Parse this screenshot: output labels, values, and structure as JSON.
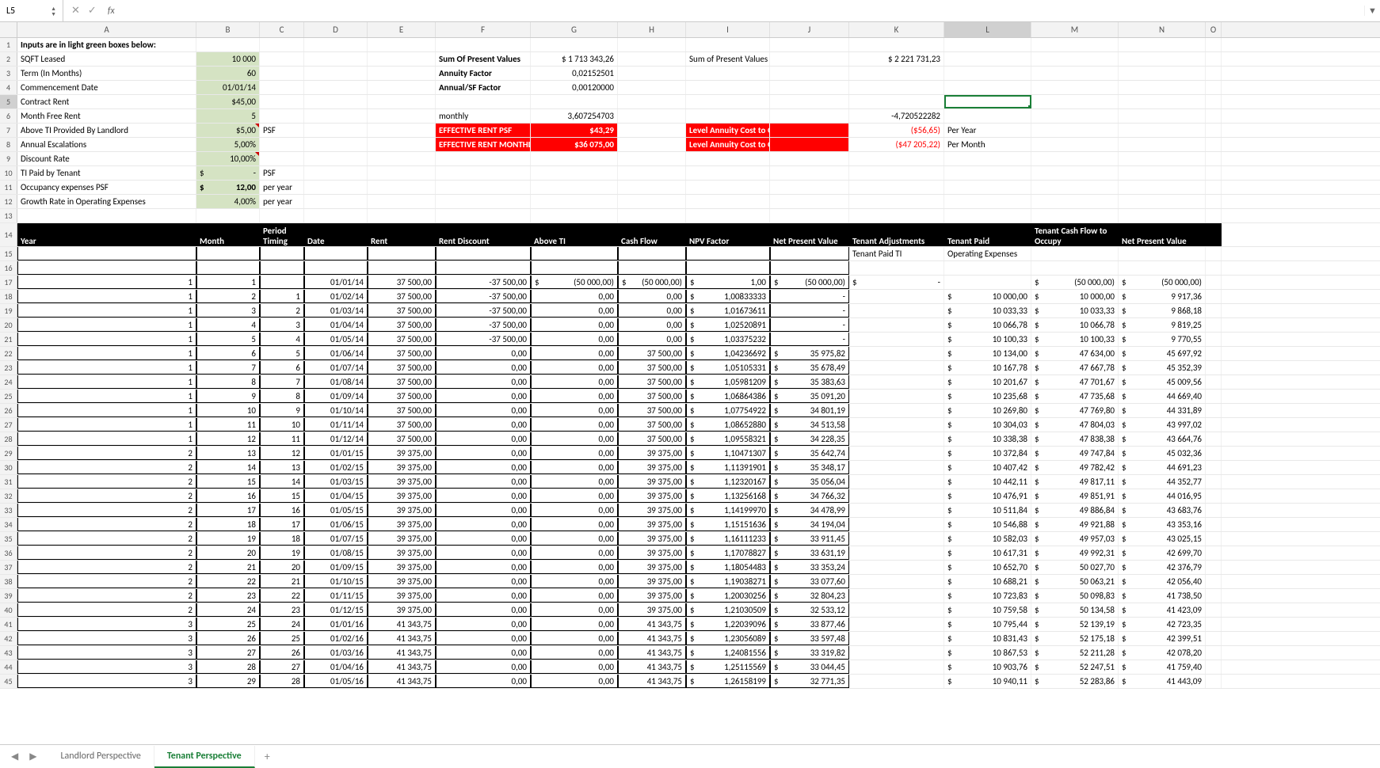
{
  "namebox": "L5",
  "fx": "",
  "cols": [
    "A",
    "B",
    "C",
    "D",
    "E",
    "F",
    "G",
    "H",
    "I",
    "J",
    "K",
    "L",
    "M",
    "N",
    "O"
  ],
  "widths": [
    "cw-A",
    "cw-B",
    "cw-C",
    "cw-D",
    "cw-E",
    "cw-F",
    "cw-G",
    "cw-H",
    "cw-I",
    "cw-J",
    "cw-K",
    "cw-L",
    "cw-M",
    "cw-N",
    "cw-O"
  ],
  "inputs": [
    {
      "r": 1,
      "a": "Inputs are in light green boxes below:",
      "aclass": "bold"
    },
    {
      "r": 2,
      "a": "SQFT Leased",
      "b": "10 000",
      "bclass": "lg r",
      "f": "Sum Of Present Values",
      "fclass": "bold",
      "g": "$   1 713 343,26",
      "gclass": "r",
      "i": "Sum of Present Values for Occupancy",
      "k": "$    2 221 731,23",
      "kclass": "r"
    },
    {
      "r": 3,
      "a": "Term (In Months)",
      "b": "60",
      "bclass": "lg r",
      "f": "Annuity Factor",
      "fclass": "bold",
      "g": "0,02152501",
      "gclass": "r"
    },
    {
      "r": 4,
      "a": "Commencement Date",
      "b": "01/01/14",
      "bclass": "lg r",
      "f": "Annual/SF Factor",
      "fclass": "bold",
      "g": "0,00120000",
      "gclass": "r"
    },
    {
      "r": 5,
      "a": "Contract Rent",
      "b": "$45,00",
      "bclass": "lg r",
      "lsel": true
    },
    {
      "r": 6,
      "a": "Month Free Rent",
      "b": "5",
      "bclass": "lg r",
      "f": "monthly",
      "g": "3,607254703",
      "gclass": "r",
      "k": "-4,720522282",
      "kclass": "r"
    },
    {
      "r": 7,
      "a": "Above TI Provided By Landlord",
      "b": "$5,00",
      "bclass": "lg r tri-red",
      "c": "PSF",
      "f": "EFFECTIVE RENT PSF",
      "fclass": "red",
      "g": "$43,29",
      "gclass": "red r",
      "i": "Level Annuity Cost to Occupy PSF",
      "iclass": "red",
      "k": "($56,65)",
      "kclass": "r neg",
      "l": "Per Year"
    },
    {
      "r": 8,
      "a": "Annual Escalations",
      "b": "5,00%",
      "bclass": "lg r",
      "f": "EFFECTIVE RENT MONTHLY",
      "fclass": "red",
      "g": "$36 075,00",
      "gclass": "red r",
      "i": "Level Annuity Cost to Occupy",
      "iclass": "red",
      "k": "($47 205,22)",
      "kclass": "r neg",
      "l": "Per Month"
    },
    {
      "r": 9,
      "a": "Discount Rate",
      "b": "10,00%",
      "bclass": "lg r tri-red"
    },
    {
      "r": 10,
      "a": "TI Paid by Tenant",
      "bpre": "$",
      "b": "-",
      "bclass": "lg r",
      "c": "PSF"
    },
    {
      "r": 11,
      "a": "Occupancy expenses PSF",
      "bpre": "$",
      "b": "12,00",
      "bclass": "lg r bold",
      "c": "per year"
    },
    {
      "r": 12,
      "a": "Growth Rate in Operating Expenses",
      "b": "4,00%",
      "bclass": "lg r",
      "c": "per year"
    },
    {
      "r": 13
    }
  ],
  "headers": {
    "A": "Year",
    "B": "Month",
    "C": "Period Timing",
    "D": "Date",
    "E": "Rent",
    "F": "Rent Discount",
    "G": "Above TI",
    "H": "Cash Flow",
    "I": "NPV Factor",
    "J": "Net Present Value",
    "K": "Tenant Adjustments",
    "L": "Tenant Paid",
    "M": "Tenant Cash Flow to Occupy",
    "N": "Net Present Value"
  },
  "subheaders": {
    "K": "Tenant Paid TI",
    "L": "Operating Expenses"
  },
  "table": [
    {
      "r": 17,
      "y": 1,
      "m": 1,
      "p": 0,
      "d": "01/01/14",
      "rent": "37 500,00",
      "disc": "-37 500,00",
      "ti": "(50 000,00)",
      "tipre": "$",
      "cf": "(50 000,00)",
      "cfpre": "$",
      "npvf": "1,00",
      "npvfpre": "$",
      "npv": "(50 000,00)",
      "npvpre": "$",
      "adj": "-",
      "adjpre": "$",
      "tp": "",
      "tcf": "(50 000,00)",
      "tcfpre": "$",
      "nv": "(50 000,00)",
      "nvpre": "$"
    },
    {
      "r": 18,
      "y": 1,
      "m": 2,
      "p": 1,
      "d": "01/02/14",
      "rent": "37 500,00",
      "disc": "-37 500,00",
      "ti": "0,00",
      "cf": "0,00",
      "npvf": "1,00833333",
      "npvfpre": "$",
      "npv": "-",
      "adj": "",
      "tp": "10 000,00",
      "tppre": "$",
      "tcf": "10 000,00",
      "tcfpre": "$",
      "nv": "9 917,36",
      "nvpre": "$"
    },
    {
      "r": 19,
      "y": 1,
      "m": 3,
      "p": 2,
      "d": "01/03/14",
      "rent": "37 500,00",
      "disc": "-37 500,00",
      "ti": "0,00",
      "cf": "0,00",
      "npvf": "1,01673611",
      "npvfpre": "$",
      "npv": "-",
      "tp": "10 033,33",
      "tppre": "$",
      "tcf": "10 033,33",
      "tcfpre": "$",
      "nv": "9 868,18",
      "nvpre": "$"
    },
    {
      "r": 20,
      "y": 1,
      "m": 4,
      "p": 3,
      "d": "01/04/14",
      "rent": "37 500,00",
      "disc": "-37 500,00",
      "ti": "0,00",
      "cf": "0,00",
      "npvf": "1,02520891",
      "npvfpre": "$",
      "npv": "-",
      "tp": "10 066,78",
      "tppre": "$",
      "tcf": "10 066,78",
      "tcfpre": "$",
      "nv": "9 819,25",
      "nvpre": "$"
    },
    {
      "r": 21,
      "y": 1,
      "m": 5,
      "p": 4,
      "d": "01/05/14",
      "rent": "37 500,00",
      "disc": "-37 500,00",
      "ti": "0,00",
      "cf": "0,00",
      "npvf": "1,03375232",
      "npvfpre": "$",
      "npv": "-",
      "tp": "10 100,33",
      "tppre": "$",
      "tcf": "10 100,33",
      "tcfpre": "$",
      "nv": "9 770,55",
      "nvpre": "$"
    },
    {
      "r": 22,
      "y": 1,
      "m": 6,
      "p": 5,
      "d": "01/06/14",
      "rent": "37 500,00",
      "disc": "0,00",
      "ti": "0,00",
      "cf": "37 500,00",
      "npvf": "1,04236692",
      "npvfpre": "$",
      "npv": "35 975,82",
      "npvpre": "$",
      "tp": "10 134,00",
      "tppre": "$",
      "tcf": "47 634,00",
      "tcfpre": "$",
      "nv": "45 697,92",
      "nvpre": "$"
    },
    {
      "r": 23,
      "y": 1,
      "m": 7,
      "p": 6,
      "d": "01/07/14",
      "rent": "37 500,00",
      "disc": "0,00",
      "ti": "0,00",
      "cf": "37 500,00",
      "npvf": "1,05105331",
      "npvfpre": "$",
      "npv": "35 678,49",
      "npvpre": "$",
      "tp": "10 167,78",
      "tppre": "$",
      "tcf": "47 667,78",
      "tcfpre": "$",
      "nv": "45 352,39",
      "nvpre": "$"
    },
    {
      "r": 24,
      "y": 1,
      "m": 8,
      "p": 7,
      "d": "01/08/14",
      "rent": "37 500,00",
      "disc": "0,00",
      "ti": "0,00",
      "cf": "37 500,00",
      "npvf": "1,05981209",
      "npvfpre": "$",
      "npv": "35 383,63",
      "npvpre": "$",
      "tp": "10 201,67",
      "tppre": "$",
      "tcf": "47 701,67",
      "tcfpre": "$",
      "nv": "45 009,56",
      "nvpre": "$"
    },
    {
      "r": 25,
      "y": 1,
      "m": 9,
      "p": 8,
      "d": "01/09/14",
      "rent": "37 500,00",
      "disc": "0,00",
      "ti": "0,00",
      "cf": "37 500,00",
      "npvf": "1,06864386",
      "npvfpre": "$",
      "npv": "35 091,20",
      "npvpre": "$",
      "tp": "10 235,68",
      "tppre": "$",
      "tcf": "47 735,68",
      "tcfpre": "$",
      "nv": "44 669,40",
      "nvpre": "$"
    },
    {
      "r": 26,
      "y": 1,
      "m": 10,
      "p": 9,
      "d": "01/10/14",
      "rent": "37 500,00",
      "disc": "0,00",
      "ti": "0,00",
      "cf": "37 500,00",
      "npvf": "1,07754922",
      "npvfpre": "$",
      "npv": "34 801,19",
      "npvpre": "$",
      "tp": "10 269,80",
      "tppre": "$",
      "tcf": "47 769,80",
      "tcfpre": "$",
      "nv": "44 331,89",
      "nvpre": "$"
    },
    {
      "r": 27,
      "y": 1,
      "m": 11,
      "p": 10,
      "d": "01/11/14",
      "rent": "37 500,00",
      "disc": "0,00",
      "ti": "0,00",
      "cf": "37 500,00",
      "npvf": "1,08652880",
      "npvfpre": "$",
      "npv": "34 513,58",
      "npvpre": "$",
      "tp": "10 304,03",
      "tppre": "$",
      "tcf": "47 804,03",
      "tcfpre": "$",
      "nv": "43 997,02",
      "nvpre": "$"
    },
    {
      "r": 28,
      "y": 1,
      "m": 12,
      "p": 11,
      "d": "01/12/14",
      "rent": "37 500,00",
      "disc": "0,00",
      "ti": "0,00",
      "cf": "37 500,00",
      "npvf": "1,09558321",
      "npvfpre": "$",
      "npv": "34 228,35",
      "npvpre": "$",
      "tp": "10 338,38",
      "tppre": "$",
      "tcf": "47 838,38",
      "tcfpre": "$",
      "nv": "43 664,76",
      "nvpre": "$"
    },
    {
      "r": 29,
      "y": 2,
      "m": 13,
      "p": 12,
      "d": "01/01/15",
      "rent": "39 375,00",
      "disc": "0,00",
      "ti": "0,00",
      "cf": "39 375,00",
      "npvf": "1,10471307",
      "npvfpre": "$",
      "npv": "35 642,74",
      "npvpre": "$",
      "tp": "10 372,84",
      "tppre": "$",
      "tcf": "49 747,84",
      "tcfpre": "$",
      "nv": "45 032,36",
      "nvpre": "$"
    },
    {
      "r": 30,
      "y": 2,
      "m": 14,
      "p": 13,
      "d": "01/02/15",
      "rent": "39 375,00",
      "disc": "0,00",
      "ti": "0,00",
      "cf": "39 375,00",
      "npvf": "1,11391901",
      "npvfpre": "$",
      "npv": "35 348,17",
      "npvpre": "$",
      "tp": "10 407,42",
      "tppre": "$",
      "tcf": "49 782,42",
      "tcfpre": "$",
      "nv": "44 691,23",
      "nvpre": "$"
    },
    {
      "r": 31,
      "y": 2,
      "m": 15,
      "p": 14,
      "d": "01/03/15",
      "rent": "39 375,00",
      "disc": "0,00",
      "ti": "0,00",
      "cf": "39 375,00",
      "npvf": "1,12320167",
      "npvfpre": "$",
      "npv": "35 056,04",
      "npvpre": "$",
      "tp": "10 442,11",
      "tppre": "$",
      "tcf": "49 817,11",
      "tcfpre": "$",
      "nv": "44 352,77",
      "nvpre": "$"
    },
    {
      "r": 32,
      "y": 2,
      "m": 16,
      "p": 15,
      "d": "01/04/15",
      "rent": "39 375,00",
      "disc": "0,00",
      "ti": "0,00",
      "cf": "39 375,00",
      "npvf": "1,13256168",
      "npvfpre": "$",
      "npv": "34 766,32",
      "npvpre": "$",
      "tp": "10 476,91",
      "tppre": "$",
      "tcf": "49 851,91",
      "tcfpre": "$",
      "nv": "44 016,95",
      "nvpre": "$"
    },
    {
      "r": 33,
      "y": 2,
      "m": 17,
      "p": 16,
      "d": "01/05/15",
      "rent": "39 375,00",
      "disc": "0,00",
      "ti": "0,00",
      "cf": "39 375,00",
      "npvf": "1,14199970",
      "npvfpre": "$",
      "npv": "34 478,99",
      "npvpre": "$",
      "tp": "10 511,84",
      "tppre": "$",
      "tcf": "49 886,84",
      "tcfpre": "$",
      "nv": "43 683,76",
      "nvpre": "$"
    },
    {
      "r": 34,
      "y": 2,
      "m": 18,
      "p": 17,
      "d": "01/06/15",
      "rent": "39 375,00",
      "disc": "0,00",
      "ti": "0,00",
      "cf": "39 375,00",
      "npvf": "1,15151636",
      "npvfpre": "$",
      "npv": "34 194,04",
      "npvpre": "$",
      "tp": "10 546,88",
      "tppre": "$",
      "tcf": "49 921,88",
      "tcfpre": "$",
      "nv": "43 353,16",
      "nvpre": "$"
    },
    {
      "r": 35,
      "y": 2,
      "m": 19,
      "p": 18,
      "d": "01/07/15",
      "rent": "39 375,00",
      "disc": "0,00",
      "ti": "0,00",
      "cf": "39 375,00",
      "npvf": "1,16111233",
      "npvfpre": "$",
      "npv": "33 911,45",
      "npvpre": "$",
      "tp": "10 582,03",
      "tppre": "$",
      "tcf": "49 957,03",
      "tcfpre": "$",
      "nv": "43 025,15",
      "nvpre": "$"
    },
    {
      "r": 36,
      "y": 2,
      "m": 20,
      "p": 19,
      "d": "01/08/15",
      "rent": "39 375,00",
      "disc": "0,00",
      "ti": "0,00",
      "cf": "39 375,00",
      "npvf": "1,17078827",
      "npvfpre": "$",
      "npv": "33 631,19",
      "npvpre": "$",
      "tp": "10 617,31",
      "tppre": "$",
      "tcf": "49 992,31",
      "tcfpre": "$",
      "nv": "42 699,70",
      "nvpre": "$"
    },
    {
      "r": 37,
      "y": 2,
      "m": 21,
      "p": 20,
      "d": "01/09/15",
      "rent": "39 375,00",
      "disc": "0,00",
      "ti": "0,00",
      "cf": "39 375,00",
      "npvf": "1,18054483",
      "npvfpre": "$",
      "npv": "33 353,24",
      "npvpre": "$",
      "tp": "10 652,70",
      "tppre": "$",
      "tcf": "50 027,70",
      "tcfpre": "$",
      "nv": "42 376,79",
      "nvpre": "$"
    },
    {
      "r": 38,
      "y": 2,
      "m": 22,
      "p": 21,
      "d": "01/10/15",
      "rent": "39 375,00",
      "disc": "0,00",
      "ti": "0,00",
      "cf": "39 375,00",
      "npvf": "1,19038271",
      "npvfpre": "$",
      "npv": "33 077,60",
      "npvpre": "$",
      "tp": "10 688,21",
      "tppre": "$",
      "tcf": "50 063,21",
      "tcfpre": "$",
      "nv": "42 056,40",
      "nvpre": "$"
    },
    {
      "r": 39,
      "y": 2,
      "m": 23,
      "p": 22,
      "d": "01/11/15",
      "rent": "39 375,00",
      "disc": "0,00",
      "ti": "0,00",
      "cf": "39 375,00",
      "npvf": "1,20030256",
      "npvfpre": "$",
      "npv": "32 804,23",
      "npvpre": "$",
      "tp": "10 723,83",
      "tppre": "$",
      "tcf": "50 098,83",
      "tcfpre": "$",
      "nv": "41 738,50",
      "nvpre": "$"
    },
    {
      "r": 40,
      "y": 2,
      "m": 24,
      "p": 23,
      "d": "01/12/15",
      "rent": "39 375,00",
      "disc": "0,00",
      "ti": "0,00",
      "cf": "39 375,00",
      "npvf": "1,21030509",
      "npvfpre": "$",
      "npv": "32 533,12",
      "npvpre": "$",
      "tp": "10 759,58",
      "tppre": "$",
      "tcf": "50 134,58",
      "tcfpre": "$",
      "nv": "41 423,09",
      "nvpre": "$"
    },
    {
      "r": 41,
      "y": 3,
      "m": 25,
      "p": 24,
      "d": "01/01/16",
      "rent": "41 343,75",
      "disc": "0,00",
      "ti": "0,00",
      "cf": "41 343,75",
      "npvf": "1,22039096",
      "npvfpre": "$",
      "npv": "33 877,46",
      "npvpre": "$",
      "tp": "10 795,44",
      "tppre": "$",
      "tcf": "52 139,19",
      "tcfpre": "$",
      "nv": "42 723,35",
      "nvpre": "$"
    },
    {
      "r": 42,
      "y": 3,
      "m": 26,
      "p": 25,
      "d": "01/02/16",
      "rent": "41 343,75",
      "disc": "0,00",
      "ti": "0,00",
      "cf": "41 343,75",
      "npvf": "1,23056089",
      "npvfpre": "$",
      "npv": "33 597,48",
      "npvpre": "$",
      "tp": "10 831,43",
      "tppre": "$",
      "tcf": "52 175,18",
      "tcfpre": "$",
      "nv": "42 399,51",
      "nvpre": "$"
    },
    {
      "r": 43,
      "y": 3,
      "m": 27,
      "p": 26,
      "d": "01/03/16",
      "rent": "41 343,75",
      "disc": "0,00",
      "ti": "0,00",
      "cf": "41 343,75",
      "npvf": "1,24081556",
      "npvfpre": "$",
      "npv": "33 319,82",
      "npvpre": "$",
      "tp": "10 867,53",
      "tppre": "$",
      "tcf": "52 211,28",
      "tcfpre": "$",
      "nv": "42 078,20",
      "nvpre": "$"
    },
    {
      "r": 44,
      "y": 3,
      "m": 28,
      "p": 27,
      "d": "01/04/16",
      "rent": "41 343,75",
      "disc": "0,00",
      "ti": "0,00",
      "cf": "41 343,75",
      "npvf": "1,25115569",
      "npvfpre": "$",
      "npv": "33 044,45",
      "npvpre": "$",
      "tp": "10 903,76",
      "tppre": "$",
      "tcf": "52 247,51",
      "tcfpre": "$",
      "nv": "41 759,40",
      "nvpre": "$"
    },
    {
      "r": 45,
      "y": 3,
      "m": 29,
      "p": 28,
      "d": "01/05/16",
      "rent": "41 343,75",
      "disc": "0,00",
      "ti": "0,00",
      "cf": "41 343,75",
      "npvf": "1,26158199",
      "npvfpre": "$",
      "npv": "32 771,35",
      "npvpre": "$",
      "tp": "10 940,11",
      "tppre": "$",
      "tcf": "52 283,86",
      "tcfpre": "$",
      "nv": "41 443,09",
      "nvpre": "$"
    }
  ],
  "tabs": [
    {
      "label": "Landlord Perspective",
      "active": false
    },
    {
      "label": "Tenant Perspective",
      "active": true
    }
  ]
}
